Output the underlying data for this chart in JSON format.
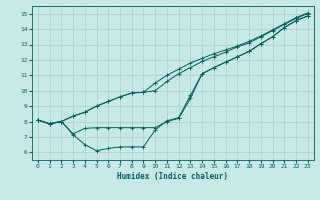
{
  "xlabel": "Humidex (Indice chaleur)",
  "ylabel": "",
  "xlim": [
    -0.5,
    23.5
  ],
  "ylim": [
    5.5,
    15.5
  ],
  "xticks": [
    0,
    1,
    2,
    3,
    4,
    5,
    6,
    7,
    8,
    9,
    10,
    11,
    12,
    13,
    14,
    15,
    16,
    17,
    18,
    19,
    20,
    21,
    22,
    23
  ],
  "yticks": [
    6,
    7,
    8,
    9,
    10,
    11,
    12,
    13,
    14,
    15
  ],
  "bg_color": "#c8e8e8",
  "grid_color": "#b0cccc",
  "line_color": "#006060",
  "lines": [
    {
      "x": [
        0,
        1,
        2,
        3,
        4,
        5,
        6,
        7,
        8,
        9,
        10,
        11,
        12,
        13,
        14,
        15,
        16,
        17,
        18,
        19,
        20,
        21,
        22,
        23
      ],
      "y": [
        8.1,
        7.85,
        8.0,
        7.15,
        6.5,
        6.1,
        6.25,
        6.35,
        6.35,
        6.35,
        7.45,
        8.05,
        8.25,
        9.7,
        11.1,
        11.5,
        11.85,
        12.2,
        12.55,
        13.05,
        13.5,
        14.1,
        14.55,
        14.85
      ]
    },
    {
      "x": [
        0,
        1,
        2,
        3,
        4,
        5,
        6,
        7,
        8,
        9,
        10,
        11,
        12,
        13,
        14,
        15,
        16,
        17,
        18,
        19,
        20,
        21,
        22,
        23
      ],
      "y": [
        8.1,
        7.85,
        8.0,
        7.2,
        7.55,
        7.6,
        7.6,
        7.6,
        7.6,
        7.6,
        7.6,
        8.0,
        8.2,
        9.5,
        11.1,
        11.5,
        11.85,
        12.2,
        12.55,
        13.05,
        13.5,
        14.1,
        14.55,
        14.85
      ]
    },
    {
      "x": [
        0,
        1,
        2,
        3,
        4,
        5,
        6,
        7,
        8,
        9,
        10,
        11,
        12,
        13,
        14,
        15,
        16,
        17,
        18,
        19,
        20,
        21,
        22,
        23
      ],
      "y": [
        8.1,
        7.85,
        8.0,
        8.35,
        8.6,
        9.0,
        9.3,
        9.6,
        9.85,
        9.9,
        10.0,
        10.6,
        11.1,
        11.5,
        11.9,
        12.2,
        12.5,
        12.85,
        13.1,
        13.5,
        13.9,
        14.3,
        14.7,
        15.0
      ]
    },
    {
      "x": [
        0,
        1,
        2,
        3,
        4,
        5,
        6,
        7,
        8,
        9,
        10,
        11,
        12,
        13,
        14,
        15,
        16,
        17,
        18,
        19,
        20,
        21,
        22,
        23
      ],
      "y": [
        8.1,
        7.85,
        8.0,
        8.35,
        8.6,
        9.0,
        9.3,
        9.6,
        9.85,
        9.9,
        10.5,
        11.0,
        11.4,
        11.8,
        12.1,
        12.4,
        12.65,
        12.9,
        13.2,
        13.55,
        13.95,
        14.35,
        14.75,
        15.05
      ]
    }
  ]
}
